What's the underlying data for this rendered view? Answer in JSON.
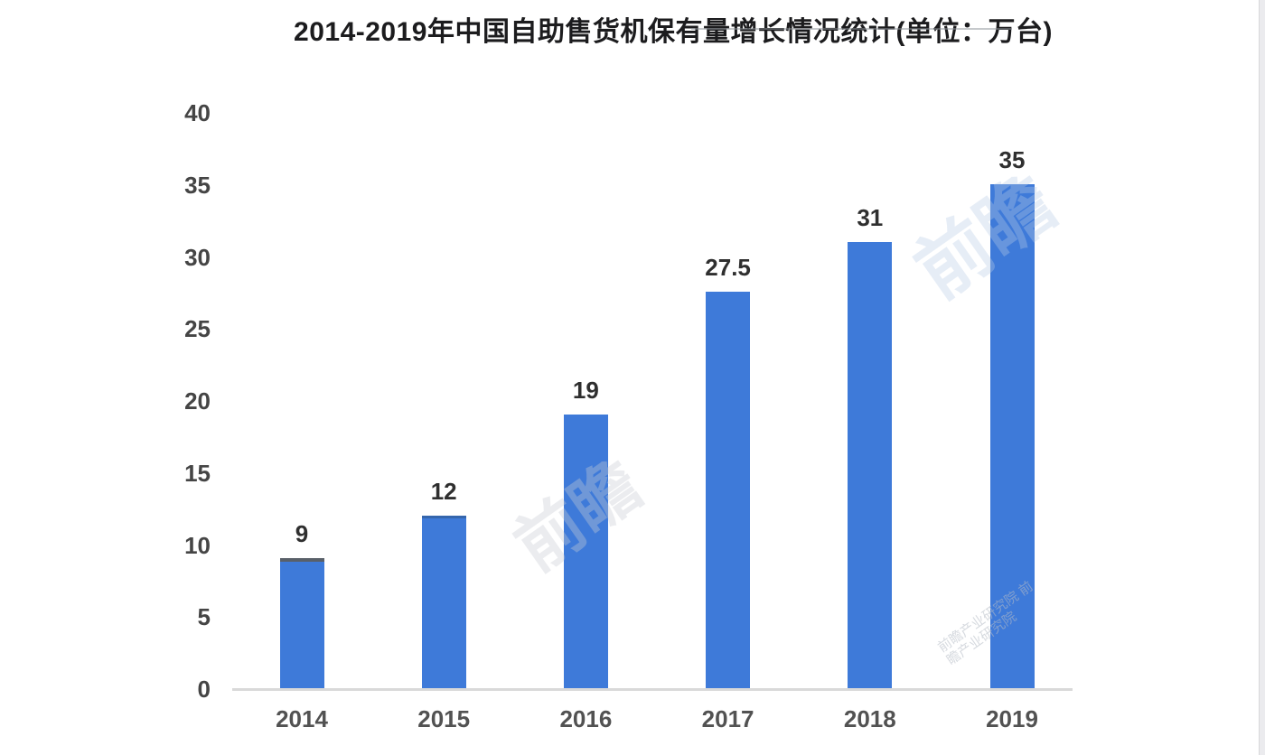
{
  "title": "2014-2019年中国自助售货机保有量增长情况统计(单位：万台)",
  "chart_data": {
    "type": "bar",
    "title": "2014-2019年中国自助售货机保有量增长情况统计(单位：万台)",
    "unit_label": "万台",
    "categories": [
      "2014",
      "2015",
      "2016",
      "2017",
      "2018",
      "2019"
    ],
    "values": [
      9,
      12,
      19,
      27.5,
      31,
      35
    ],
    "value_labels": [
      "9",
      "12",
      "19",
      "27.5",
      "31",
      "35"
    ],
    "xlabel": "",
    "ylabel": "",
    "ylim": [
      0,
      40
    ],
    "yticks": [
      0,
      5,
      10,
      15,
      20,
      25,
      30,
      35,
      40
    ],
    "grid": false,
    "legend_position": "none",
    "bar_color": "#3e7ad9",
    "axis_line_color": "#d9d9d9"
  },
  "watermarks": {
    "brand": "前瞻",
    "full": "前瞻产业研究院 前瞻产业研究院"
  }
}
